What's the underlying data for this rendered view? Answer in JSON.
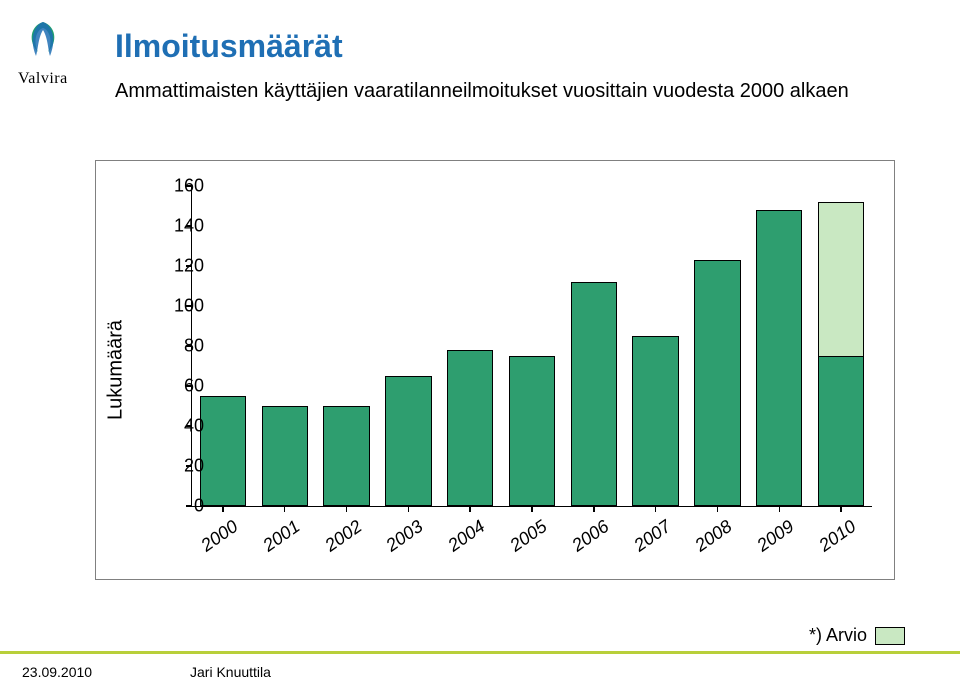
{
  "logo": {
    "text": "Valvira",
    "swirl_color_1": "#1f9f6f",
    "swirl_color_2": "#1f6fb4"
  },
  "title": "Ilmoitusmäärät",
  "subtitle": "Ammattimaisten käyttäjien vaaratilanneilmoitukset vuosittain vuodesta 2000 alkaen",
  "chart": {
    "type": "bar",
    "y_title": "Lukumäärä",
    "ylim": [
      0,
      160
    ],
    "ytick_step": 20,
    "y_tick_labels": [
      "0",
      "20",
      "40",
      "60",
      "80",
      "100",
      "120",
      "140",
      "160"
    ],
    "tick_fontsize": 18,
    "axis_title_fontsize": 20,
    "categories": [
      "2000",
      "2001",
      "2002",
      "2003",
      "2004",
      "2005",
      "2006",
      "2007",
      "2008",
      "2009",
      "2010"
    ],
    "values": [
      55,
      50,
      50,
      65,
      78,
      75,
      112,
      85,
      123,
      148,
      152
    ],
    "overlay_index": 10,
    "overlay_value": 75,
    "bar_color": "#2e9e6f",
    "bar_border_color": "#000000",
    "overlay_color": "#c9e8c2",
    "overlay_border_color": "#000000",
    "background_color": "#ffffff",
    "frame_border_color": "#808080",
    "bar_width_ratio": 0.75,
    "x_label_rotation_deg": -35,
    "x_label_fontstyle": "italic"
  },
  "legend": {
    "label": "*) Arvio",
    "swatch_fill": "#c9e8c2",
    "swatch_border": "#000000"
  },
  "footer": {
    "date": "23.09.2010",
    "author": "Jari Knuuttila",
    "line_color": "#b8cf3a"
  }
}
